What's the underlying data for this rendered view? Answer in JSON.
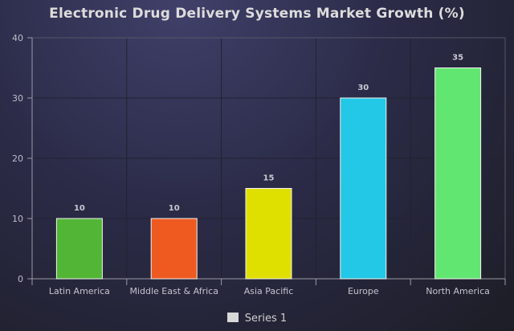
{
  "chart_data": {
    "type": "bar",
    "title": "Electronic Drug Delivery Systems Market Growth (%)",
    "categories": [
      "Latin America",
      "Middle East & Africa",
      "Asia Pacific",
      "Europe",
      "North America"
    ],
    "series": [
      {
        "name": "Series 1",
        "values": [
          10,
          10,
          15,
          30,
          35
        ],
        "colors": [
          "#52b535",
          "#ee5a20",
          "#e0e000",
          "#22c8e5",
          "#62e672"
        ]
      }
    ],
    "data_labels": [
      "10",
      "10",
      "15",
      "30",
      "35"
    ],
    "y_ticks": [
      "0",
      "10",
      "20",
      "30",
      "40"
    ],
    "ylim": [
      0,
      40
    ],
    "xlabel": "",
    "ylabel": "",
    "grid": true,
    "legend_position": "bottom-center"
  }
}
